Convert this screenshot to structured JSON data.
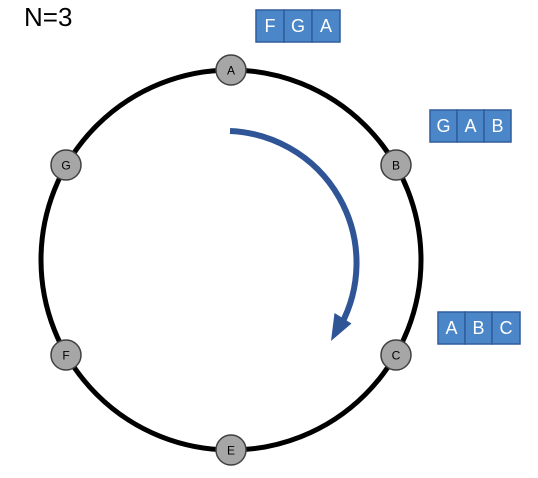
{
  "title": "N=3",
  "colors": {
    "ring": "#000000",
    "node_fill": "#a6a6a6",
    "node_stroke": "#404040",
    "arrow": "#2f5597",
    "box_fill": "#4a86c8",
    "box_border": "#2f5d9a",
    "box_text": "#ffffff"
  },
  "ring": {
    "nodes": [
      "A",
      "B",
      "C",
      "E",
      "F",
      "G"
    ]
  },
  "replica_groups": [
    {
      "node": "A",
      "members": [
        "F",
        "G",
        "A"
      ]
    },
    {
      "node": "B",
      "members": [
        "G",
        "A",
        "B"
      ]
    },
    {
      "node": "C",
      "members": [
        "A",
        "B",
        "C"
      ]
    }
  ],
  "arrow": {
    "direction": "clockwise",
    "icon": "curved-arrow-icon"
  }
}
